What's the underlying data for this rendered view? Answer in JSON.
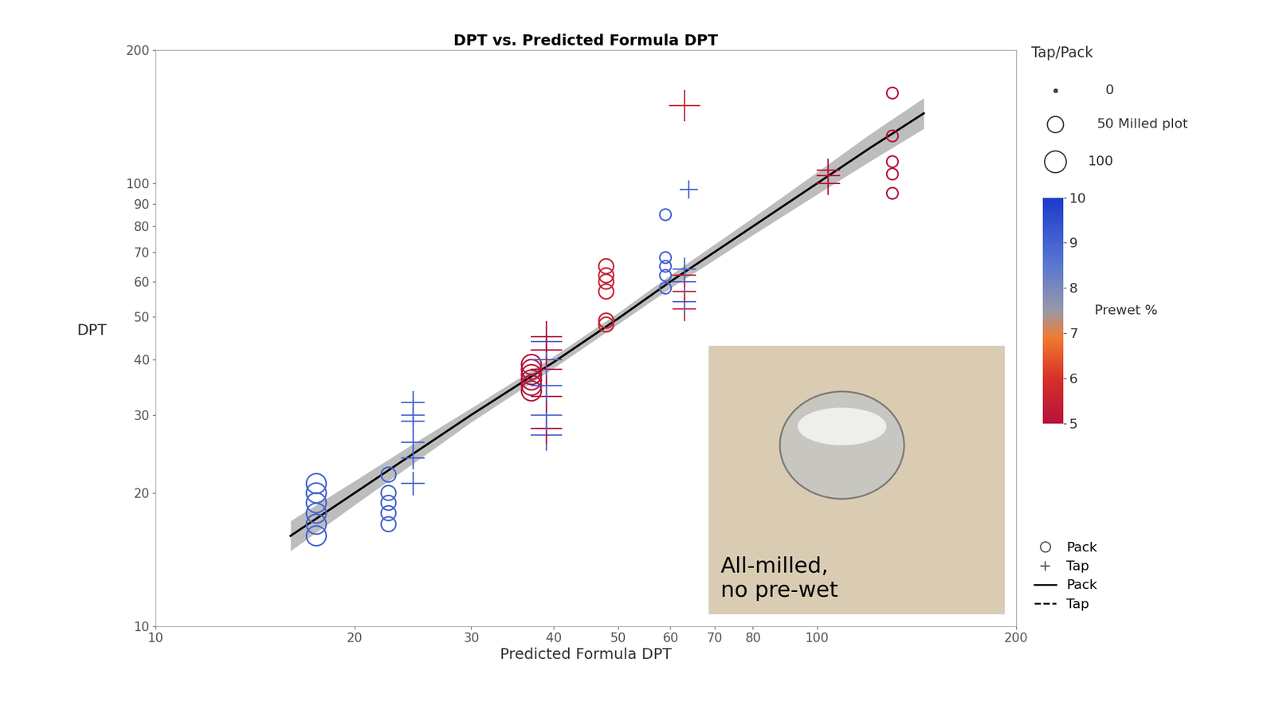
{
  "chart_data": {
    "type": "scatter",
    "title": "DPT vs. Predicted Formula DPT",
    "x_label": "Predicted Formula DPT",
    "y_label": "DPT",
    "log": true,
    "xlim": [
      10,
      200
    ],
    "ylim": [
      10,
      200
    ],
    "xticks": [
      10,
      20,
      30,
      40,
      50,
      60,
      70,
      80,
      100,
      200
    ],
    "yticks": [
      10,
      20,
      30,
      40,
      50,
      60,
      70,
      80,
      90,
      100,
      200
    ],
    "annotation": "All-milled,\nno pre-wet",
    "legend": "lower left",
    "series": [
      {
        "name": "Pack",
        "type": "scatter",
        "marker": "circle",
        "x": [
          17.5,
          17.5,
          17.5,
          17.5,
          17.5,
          17.5,
          22.5,
          22.5,
          22.5,
          22.5,
          22.5,
          37,
          37,
          37,
          37,
          37,
          37,
          48,
          48,
          48,
          48,
          48,
          48,
          59,
          59,
          59,
          59,
          59,
          130,
          130,
          130,
          130,
          130
        ],
        "values": [
          16,
          17,
          18,
          19,
          20,
          21,
          17,
          18,
          19,
          20,
          22,
          34,
          35,
          36,
          37,
          38,
          39,
          48,
          49,
          57,
          60,
          62,
          65,
          58,
          62,
          65,
          68,
          85,
          95,
          105,
          112,
          128,
          160
        ],
        "prewet": [
          9,
          9,
          9,
          9,
          9,
          9,
          9,
          9,
          9,
          9,
          9,
          5,
          5,
          5,
          5,
          5,
          5,
          5.5,
          5.5,
          5.5,
          5.5,
          5.5,
          5.5,
          9,
          9,
          9,
          9,
          9,
          5,
          5,
          5,
          5,
          5
        ],
        "milled": [
          100,
          100,
          100,
          100,
          100,
          100,
          50,
          50,
          50,
          50,
          50,
          100,
          100,
          100,
          100,
          100,
          100,
          50,
          50,
          50,
          50,
          50,
          50,
          25,
          25,
          25,
          25,
          25,
          25,
          25,
          25,
          25,
          25
        ]
      },
      {
        "name": "Tap",
        "type": "scatter",
        "marker": "plus",
        "x": [
          24.5,
          24.5,
          24.5,
          24.5,
          24.5,
          24.5,
          39,
          39,
          39,
          39,
          39,
          39,
          39,
          39,
          39,
          39,
          63,
          63,
          63,
          63,
          63,
          63,
          63,
          64,
          104,
          104,
          104
        ],
        "values": [
          21,
          24,
          26,
          29,
          30,
          32,
          27,
          28,
          30,
          33,
          35,
          38,
          40,
          42,
          44,
          45,
          52,
          54,
          57,
          60,
          62,
          64,
          150,
          97,
          100,
          104,
          107
        ],
        "prewet": [
          9,
          9,
          9,
          9,
          9,
          9,
          9,
          5,
          9,
          5,
          9,
          5,
          9,
          5,
          9,
          5,
          5.5,
          9,
          5.5,
          9,
          5.5,
          9,
          5.5,
          9,
          5,
          5,
          5
        ],
        "milled": [
          50,
          50,
          50,
          50,
          50,
          50,
          100,
          100,
          100,
          100,
          100,
          100,
          100,
          100,
          100,
          100,
          50,
          50,
          50,
          50,
          50,
          50,
          100,
          25,
          50,
          50,
          50
        ]
      },
      {
        "name": "Pack",
        "type": "line",
        "line_style": "solid",
        "color": "#000000",
        "x": [
          16,
          20,
          25,
          30,
          40,
          50,
          60,
          80,
          100,
          120,
          145
        ],
        "values": [
          16,
          20,
          25,
          30,
          39.5,
          49.5,
          60,
          80,
          100,
          120,
          144
        ],
        "lower": [
          14.8,
          18.8,
          23.8,
          28.9,
          38.3,
          48.1,
          58,
          76.5,
          94.5,
          112,
          133
        ],
        "upper": [
          17.3,
          21.3,
          26.3,
          31.1,
          40.7,
          51,
          62.1,
          83.7,
          106,
          129,
          156
        ]
      }
    ],
    "legend_lines": [
      {
        "name": "Pack",
        "line_style": "solid"
      },
      {
        "name": "Tap",
        "line_style": "dashed"
      }
    ],
    "size_legend": {
      "title": "Tap/Pack",
      "note": "Milled plot",
      "values": [
        0,
        50,
        100
      ]
    },
    "colorbar": {
      "label": "Prewet %",
      "range": [
        5,
        10
      ],
      "ticks": [
        5,
        6,
        7,
        8,
        9,
        10
      ]
    }
  }
}
